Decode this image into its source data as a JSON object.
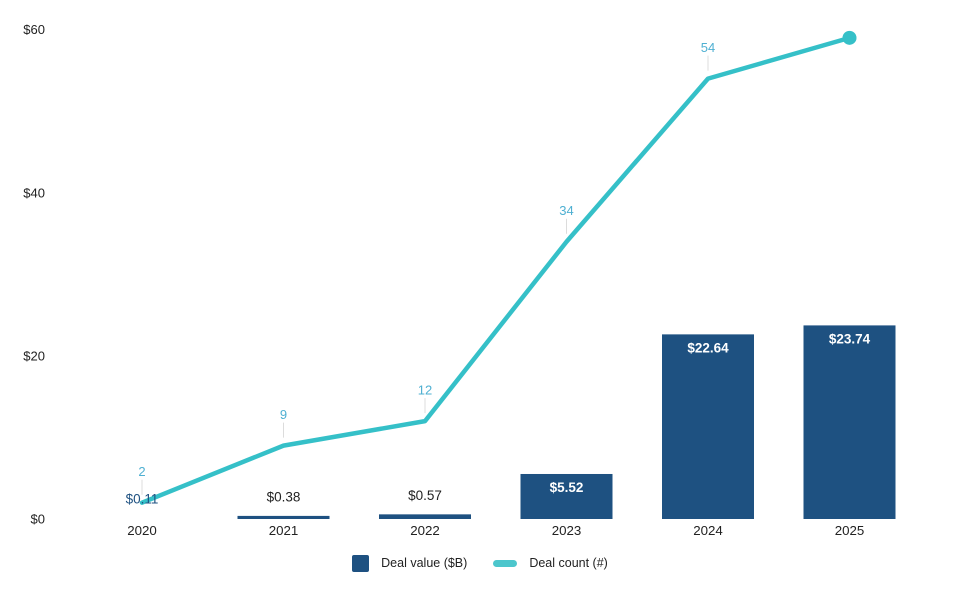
{
  "colors": {
    "background": "#ffffff",
    "bar": "#1e5181",
    "line": "#35c0c8",
    "legend_dash": "#4cc6cc",
    "count_label": "#4fb0d2",
    "leader_line": "#dcdcdc",
    "axis_text": "#222222"
  },
  "chart_data": {
    "type": "combo",
    "title": "",
    "xlabel": "",
    "ylabel": "",
    "grid": false,
    "legend_position": "bottom",
    "categories": [
      "2020",
      "2021",
      "2022",
      "2023",
      "2024",
      "2025"
    ],
    "ylim": [
      0,
      62
    ],
    "yticks": [
      {
        "value": 0,
        "label": "$0"
      },
      {
        "value": 20,
        "label": "$20"
      },
      {
        "value": 40,
        "label": "$40"
      },
      {
        "value": 60,
        "label": "$60"
      }
    ],
    "series": [
      {
        "name": "Deal value ($B)",
        "kind": "bar",
        "values": [
          0.11,
          0.38,
          0.57,
          5.52,
          22.64,
          23.74
        ],
        "labels": [
          "$0.11",
          "$0.38",
          "$0.57",
          "$5.52",
          "$22.64",
          "$23.74"
        ],
        "label_placement": [
          "above",
          "above",
          "above",
          "inside",
          "inside",
          "inside"
        ],
        "label_colors": [
          "#1e5181",
          "#222222",
          "#222222",
          "#ffffff",
          "#ffffff",
          "#ffffff"
        ]
      },
      {
        "name": "Deal count (#)",
        "kind": "line",
        "values": [
          2,
          9,
          12,
          34,
          54,
          59
        ],
        "point_labels": [
          "2",
          "9",
          "12",
          "34",
          "54",
          ""
        ],
        "end_marker": "dot"
      }
    ]
  }
}
